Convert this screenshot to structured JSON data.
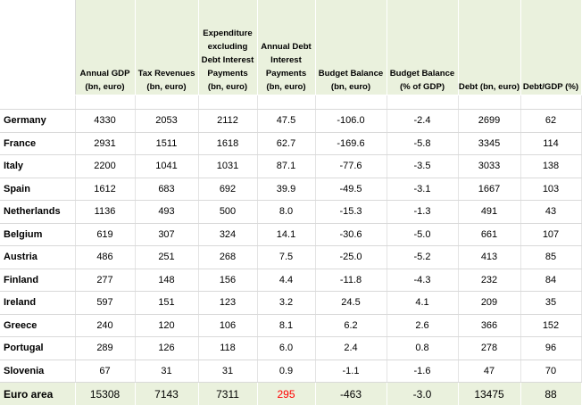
{
  "table": {
    "headers": [
      "",
      "Annual GDP (bn, euro)",
      "Tax Revenues (bn, euro)",
      "Expenditure excluding Debt Interest Payments (bn, euro)",
      "Annual Debt Interest Payments (bn, euro)",
      "Budget Balance (bn, euro)",
      "Budget Balance (% of GDP)",
      "Debt (bn, euro)",
      "Debt/GDP (%)"
    ],
    "rows": [
      [
        "Germany",
        "4330",
        "2053",
        "2112",
        "47.5",
        "-106.0",
        "-2.4",
        "2699",
        "62"
      ],
      [
        "France",
        "2931",
        "1511",
        "1618",
        "62.7",
        "-169.6",
        "-5.8",
        "3345",
        "114"
      ],
      [
        "Italy",
        "2200",
        "1041",
        "1031",
        "87.1",
        "-77.6",
        "-3.5",
        "3033",
        "138"
      ],
      [
        "Spain",
        "1612",
        "683",
        "692",
        "39.9",
        "-49.5",
        "-3.1",
        "1667",
        "103"
      ],
      [
        "Netherlands",
        "1136",
        "493",
        "500",
        "8.0",
        "-15.3",
        "-1.3",
        "491",
        "43"
      ],
      [
        "Belgium",
        "619",
        "307",
        "324",
        "14.1",
        "-30.6",
        "-5.0",
        "661",
        "107"
      ],
      [
        "Austria",
        "486",
        "251",
        "268",
        "7.5",
        "-25.0",
        "-5.2",
        "413",
        "85"
      ],
      [
        "Finland",
        "277",
        "148",
        "156",
        "4.4",
        "-11.8",
        "-4.3",
        "232",
        "84"
      ],
      [
        "Ireland",
        "597",
        "151",
        "123",
        "3.2",
        "24.5",
        "4.1",
        "209",
        "35"
      ],
      [
        "Greece",
        "240",
        "120",
        "106",
        "8.1",
        "6.2",
        "2.6",
        "366",
        "152"
      ],
      [
        "Portugal",
        "289",
        "126",
        "118",
        "6.0",
        "2.4",
        "0.8",
        "278",
        "96"
      ],
      [
        "Slovenia",
        "67",
        "31",
        "31",
        "0.9",
        "-1.1",
        "-1.6",
        "47",
        "70"
      ]
    ],
    "total": [
      "Euro area",
      "15308",
      "7143",
      "7311",
      "295",
      "-463",
      "-3.0",
      "13475",
      "88"
    ],
    "highlight_color": "#ff0000",
    "header_fill": "#eaf1dd"
  }
}
